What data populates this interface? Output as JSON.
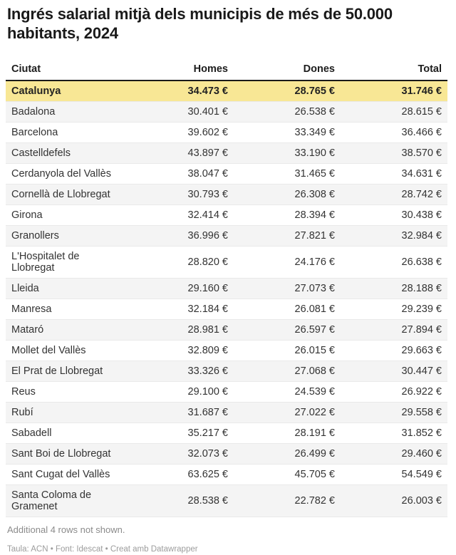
{
  "title": "Ingrés salarial mitjà dels municipis de més de 50.000 habitants, 2024",
  "table": {
    "columns": [
      "Ciutat",
      "Homes",
      "Dones",
      "Total"
    ],
    "rows": [
      {
        "ciutat": "Catalunya",
        "homes": "34.473 €",
        "dones": "28.765 €",
        "total": "31.746 €",
        "highlight": true
      },
      {
        "ciutat": "Badalona",
        "homes": "30.401 €",
        "dones": "26.538 €",
        "total": "28.615 €"
      },
      {
        "ciutat": "Barcelona",
        "homes": "39.602 €",
        "dones": "33.349 €",
        "total": "36.466 €"
      },
      {
        "ciutat": "Castelldefels",
        "homes": "43.897 €",
        "dones": "33.190 €",
        "total": "38.570 €"
      },
      {
        "ciutat": "Cerdanyola del Vallès",
        "homes": "38.047 €",
        "dones": "31.465 €",
        "total": "34.631 €"
      },
      {
        "ciutat": "Cornellà de Llobregat",
        "homes": "30.793 €",
        "dones": "26.308 €",
        "total": "28.742 €"
      },
      {
        "ciutat": "Girona",
        "homes": "32.414 €",
        "dones": "28.394 €",
        "total": "30.438 €"
      },
      {
        "ciutat": "Granollers",
        "homes": "36.996 €",
        "dones": "27.821 €",
        "total": "32.984 €"
      },
      {
        "ciutat": "L'Hospitalet de Llobregat",
        "homes": "28.820 €",
        "dones": "24.176 €",
        "total": "26.638 €"
      },
      {
        "ciutat": "Lleida",
        "homes": "29.160 €",
        "dones": "27.073 €",
        "total": "28.188 €"
      },
      {
        "ciutat": "Manresa",
        "homes": "32.184 €",
        "dones": "26.081 €",
        "total": "29.239 €"
      },
      {
        "ciutat": "Mataró",
        "homes": "28.981 €",
        "dones": "26.597 €",
        "total": "27.894 €"
      },
      {
        "ciutat": "Mollet del Vallès",
        "homes": "32.809 €",
        "dones": "26.015 €",
        "total": "29.663 €"
      },
      {
        "ciutat": "El Prat de Llobregat",
        "homes": "33.326 €",
        "dones": "27.068 €",
        "total": "30.447 €"
      },
      {
        "ciutat": "Reus",
        "homes": "29.100 €",
        "dones": "24.539 €",
        "total": "26.922 €"
      },
      {
        "ciutat": "Rubí",
        "homes": "31.687 €",
        "dones": "27.022 €",
        "total": "29.558 €"
      },
      {
        "ciutat": "Sabadell",
        "homes": "35.217 €",
        "dones": "28.191 €",
        "total": "31.852 €"
      },
      {
        "ciutat": "Sant Boi de Llobregat",
        "homes": "32.073 €",
        "dones": "26.499 €",
        "total": "29.460 €"
      },
      {
        "ciutat": "Sant Cugat del Vallès",
        "homes": "63.625 €",
        "dones": "45.705 €",
        "total": "54.549 €"
      },
      {
        "ciutat": "Santa Coloma de Gramenet",
        "homes": "28.538 €",
        "dones": "22.782 €",
        "total": "26.003 €"
      }
    ]
  },
  "footer": {
    "note": "Additional 4 rows not shown.",
    "attribution": "Taula: ACN • Font: Idescat • Creat amb Datawrapper"
  },
  "colors": {
    "highlight-yellow": "#F8E795",
    "stripe-gray": "#F4F4F4",
    "row-border": "#E9E9E9",
    "header-rule": "#1A1A1A",
    "text": "#333333",
    "muted-text": "#9C9C9C"
  },
  "chart_data": {
    "type": "table",
    "title": "Ingrés salarial mitjà dels municipis de més de 50.000 habitants, 2024",
    "columns": [
      "Ciutat",
      "Homes",
      "Dones",
      "Total"
    ],
    "unit": "€",
    "highlighted_row": "Catalunya",
    "rows": [
      [
        "Catalunya",
        34473,
        28765,
        31746
      ],
      [
        "Badalona",
        30401,
        26538,
        28615
      ],
      [
        "Barcelona",
        39602,
        33349,
        36466
      ],
      [
        "Castelldefels",
        43897,
        33190,
        38570
      ],
      [
        "Cerdanyola del Vallès",
        38047,
        31465,
        34631
      ],
      [
        "Cornellà de Llobregat",
        30793,
        26308,
        28742
      ],
      [
        "Girona",
        32414,
        28394,
        30438
      ],
      [
        "Granollers",
        36996,
        27821,
        32984
      ],
      [
        "L'Hospitalet de Llobregat",
        28820,
        24176,
        26638
      ],
      [
        "Lleida",
        29160,
        27073,
        28188
      ],
      [
        "Manresa",
        32184,
        26081,
        29239
      ],
      [
        "Mataró",
        28981,
        26597,
        27894
      ],
      [
        "Mollet del Vallès",
        32809,
        26015,
        29663
      ],
      [
        "El Prat de Llobregat",
        33326,
        27068,
        30447
      ],
      [
        "Reus",
        29100,
        24539,
        26922
      ],
      [
        "Rubí",
        31687,
        27022,
        29558
      ],
      [
        "Sabadell",
        35217,
        28191,
        31852
      ],
      [
        "Sant Boi de Llobregat",
        32073,
        26499,
        29460
      ],
      [
        "Sant Cugat del Vallès",
        63625,
        45705,
        54549
      ],
      [
        "Santa Coloma de Gramenet",
        28538,
        22782,
        26003
      ]
    ],
    "footnote": "Additional 4 rows not shown.",
    "source": "Taula: ACN • Font: Idescat • Creat amb Datawrapper"
  }
}
